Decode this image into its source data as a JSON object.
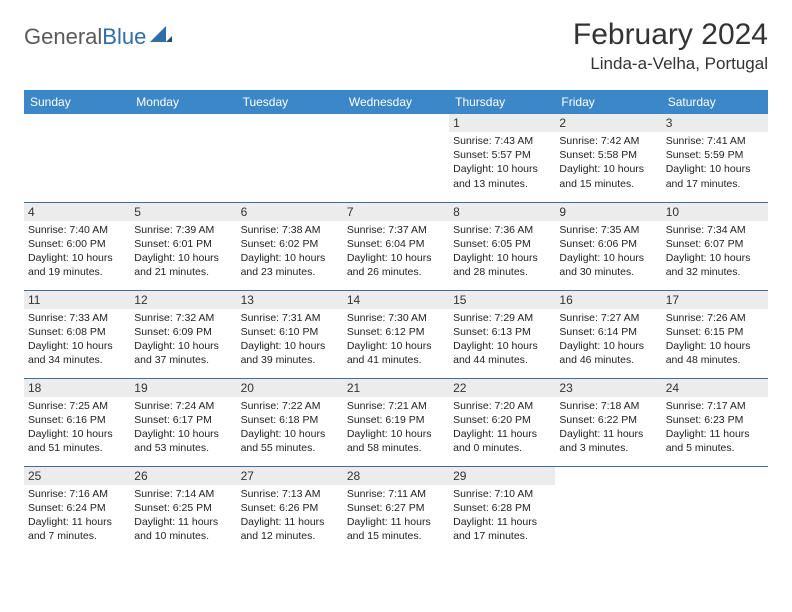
{
  "brand": {
    "part1": "General",
    "part2": "Blue"
  },
  "title": "February 2024",
  "location": "Linda-a-Velha, Portugal",
  "colors": {
    "header_bg": "#3b87c8",
    "header_text": "#ffffff",
    "daynum_bg": "#ececec",
    "row_border": "#3b6f9e",
    "brand_gray": "#5a5a5a",
    "brand_blue": "#2f6ea8"
  },
  "typography": {
    "title_fontsize": 30,
    "location_fontsize": 17,
    "header_fontsize": 12,
    "daynum_fontsize": 12,
    "content_fontsize": 10.5
  },
  "weekdays": [
    "Sunday",
    "Monday",
    "Tuesday",
    "Wednesday",
    "Thursday",
    "Friday",
    "Saturday"
  ],
  "weeks": [
    [
      {
        "empty": true
      },
      {
        "empty": true
      },
      {
        "empty": true
      },
      {
        "empty": true
      },
      {
        "num": "1",
        "sunrise": "Sunrise: 7:43 AM",
        "sunset": "Sunset: 5:57 PM",
        "daylight1": "Daylight: 10 hours",
        "daylight2": "and 13 minutes."
      },
      {
        "num": "2",
        "sunrise": "Sunrise: 7:42 AM",
        "sunset": "Sunset: 5:58 PM",
        "daylight1": "Daylight: 10 hours",
        "daylight2": "and 15 minutes."
      },
      {
        "num": "3",
        "sunrise": "Sunrise: 7:41 AM",
        "sunset": "Sunset: 5:59 PM",
        "daylight1": "Daylight: 10 hours",
        "daylight2": "and 17 minutes."
      }
    ],
    [
      {
        "num": "4",
        "sunrise": "Sunrise: 7:40 AM",
        "sunset": "Sunset: 6:00 PM",
        "daylight1": "Daylight: 10 hours",
        "daylight2": "and 19 minutes."
      },
      {
        "num": "5",
        "sunrise": "Sunrise: 7:39 AM",
        "sunset": "Sunset: 6:01 PM",
        "daylight1": "Daylight: 10 hours",
        "daylight2": "and 21 minutes."
      },
      {
        "num": "6",
        "sunrise": "Sunrise: 7:38 AM",
        "sunset": "Sunset: 6:02 PM",
        "daylight1": "Daylight: 10 hours",
        "daylight2": "and 23 minutes."
      },
      {
        "num": "7",
        "sunrise": "Sunrise: 7:37 AM",
        "sunset": "Sunset: 6:04 PM",
        "daylight1": "Daylight: 10 hours",
        "daylight2": "and 26 minutes."
      },
      {
        "num": "8",
        "sunrise": "Sunrise: 7:36 AM",
        "sunset": "Sunset: 6:05 PM",
        "daylight1": "Daylight: 10 hours",
        "daylight2": "and 28 minutes."
      },
      {
        "num": "9",
        "sunrise": "Sunrise: 7:35 AM",
        "sunset": "Sunset: 6:06 PM",
        "daylight1": "Daylight: 10 hours",
        "daylight2": "and 30 minutes."
      },
      {
        "num": "10",
        "sunrise": "Sunrise: 7:34 AM",
        "sunset": "Sunset: 6:07 PM",
        "daylight1": "Daylight: 10 hours",
        "daylight2": "and 32 minutes."
      }
    ],
    [
      {
        "num": "11",
        "sunrise": "Sunrise: 7:33 AM",
        "sunset": "Sunset: 6:08 PM",
        "daylight1": "Daylight: 10 hours",
        "daylight2": "and 34 minutes."
      },
      {
        "num": "12",
        "sunrise": "Sunrise: 7:32 AM",
        "sunset": "Sunset: 6:09 PM",
        "daylight1": "Daylight: 10 hours",
        "daylight2": "and 37 minutes."
      },
      {
        "num": "13",
        "sunrise": "Sunrise: 7:31 AM",
        "sunset": "Sunset: 6:10 PM",
        "daylight1": "Daylight: 10 hours",
        "daylight2": "and 39 minutes."
      },
      {
        "num": "14",
        "sunrise": "Sunrise: 7:30 AM",
        "sunset": "Sunset: 6:12 PM",
        "daylight1": "Daylight: 10 hours",
        "daylight2": "and 41 minutes."
      },
      {
        "num": "15",
        "sunrise": "Sunrise: 7:29 AM",
        "sunset": "Sunset: 6:13 PM",
        "daylight1": "Daylight: 10 hours",
        "daylight2": "and 44 minutes."
      },
      {
        "num": "16",
        "sunrise": "Sunrise: 7:27 AM",
        "sunset": "Sunset: 6:14 PM",
        "daylight1": "Daylight: 10 hours",
        "daylight2": "and 46 minutes."
      },
      {
        "num": "17",
        "sunrise": "Sunrise: 7:26 AM",
        "sunset": "Sunset: 6:15 PM",
        "daylight1": "Daylight: 10 hours",
        "daylight2": "and 48 minutes."
      }
    ],
    [
      {
        "num": "18",
        "sunrise": "Sunrise: 7:25 AM",
        "sunset": "Sunset: 6:16 PM",
        "daylight1": "Daylight: 10 hours",
        "daylight2": "and 51 minutes."
      },
      {
        "num": "19",
        "sunrise": "Sunrise: 7:24 AM",
        "sunset": "Sunset: 6:17 PM",
        "daylight1": "Daylight: 10 hours",
        "daylight2": "and 53 minutes."
      },
      {
        "num": "20",
        "sunrise": "Sunrise: 7:22 AM",
        "sunset": "Sunset: 6:18 PM",
        "daylight1": "Daylight: 10 hours",
        "daylight2": "and 55 minutes."
      },
      {
        "num": "21",
        "sunrise": "Sunrise: 7:21 AM",
        "sunset": "Sunset: 6:19 PM",
        "daylight1": "Daylight: 10 hours",
        "daylight2": "and 58 minutes."
      },
      {
        "num": "22",
        "sunrise": "Sunrise: 7:20 AM",
        "sunset": "Sunset: 6:20 PM",
        "daylight1": "Daylight: 11 hours",
        "daylight2": "and 0 minutes."
      },
      {
        "num": "23",
        "sunrise": "Sunrise: 7:18 AM",
        "sunset": "Sunset: 6:22 PM",
        "daylight1": "Daylight: 11 hours",
        "daylight2": "and 3 minutes."
      },
      {
        "num": "24",
        "sunrise": "Sunrise: 7:17 AM",
        "sunset": "Sunset: 6:23 PM",
        "daylight1": "Daylight: 11 hours",
        "daylight2": "and 5 minutes."
      }
    ],
    [
      {
        "num": "25",
        "sunrise": "Sunrise: 7:16 AM",
        "sunset": "Sunset: 6:24 PM",
        "daylight1": "Daylight: 11 hours",
        "daylight2": "and 7 minutes."
      },
      {
        "num": "26",
        "sunrise": "Sunrise: 7:14 AM",
        "sunset": "Sunset: 6:25 PM",
        "daylight1": "Daylight: 11 hours",
        "daylight2": "and 10 minutes."
      },
      {
        "num": "27",
        "sunrise": "Sunrise: 7:13 AM",
        "sunset": "Sunset: 6:26 PM",
        "daylight1": "Daylight: 11 hours",
        "daylight2": "and 12 minutes."
      },
      {
        "num": "28",
        "sunrise": "Sunrise: 7:11 AM",
        "sunset": "Sunset: 6:27 PM",
        "daylight1": "Daylight: 11 hours",
        "daylight2": "and 15 minutes."
      },
      {
        "num": "29",
        "sunrise": "Sunrise: 7:10 AM",
        "sunset": "Sunset: 6:28 PM",
        "daylight1": "Daylight: 11 hours",
        "daylight2": "and 17 minutes."
      },
      {
        "empty": true
      },
      {
        "empty": true
      }
    ]
  ]
}
